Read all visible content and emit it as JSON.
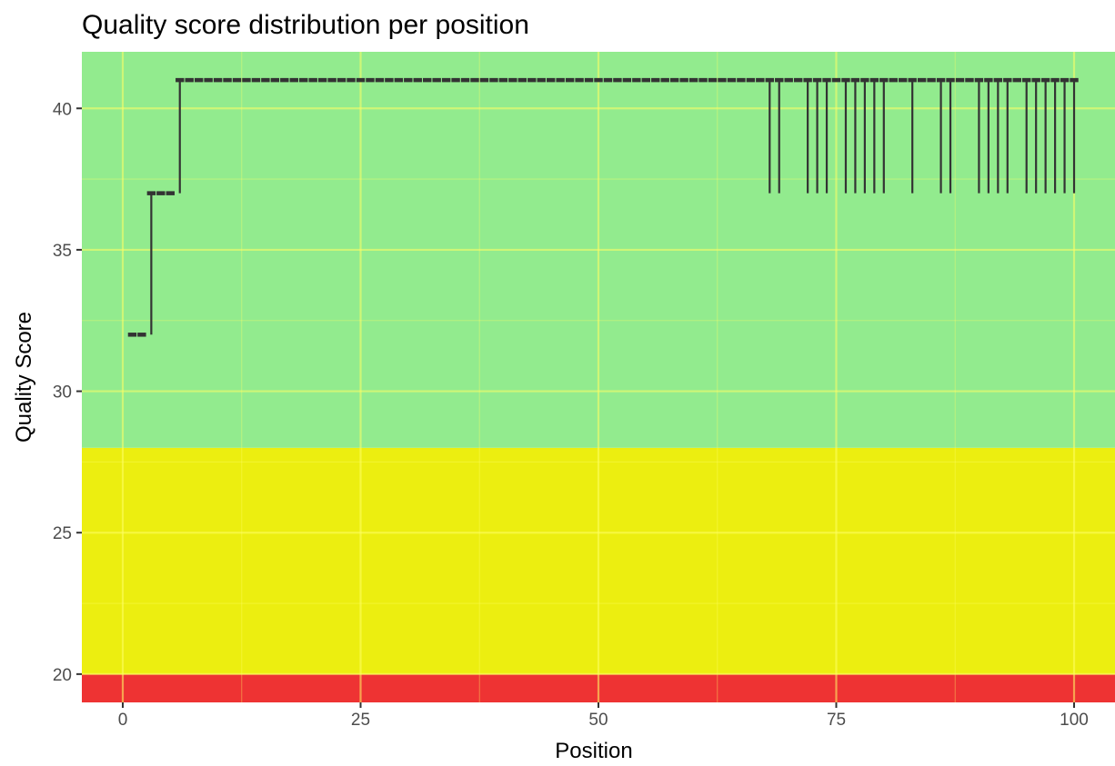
{
  "chart_data": {
    "type": "boxplot",
    "title": "Quality score distribution per position",
    "xlabel": "Position",
    "ylabel": "Quality Score",
    "xlim": [
      -4.3,
      104.3
    ],
    "ylim": [
      19,
      42
    ],
    "x_ticks": [
      0,
      25,
      50,
      75,
      100
    ],
    "y_ticks": [
      20,
      25,
      30,
      35,
      40
    ],
    "grid": true,
    "legend": "none",
    "bands": [
      {
        "from": 19,
        "to": 20,
        "color": "#ee3333"
      },
      {
        "from": 20,
        "to": 28,
        "color": "#ecee10"
      },
      {
        "from": 28,
        "to": 42,
        "color": "#92eb8e"
      }
    ],
    "box_color": "#333333",
    "constant_runs": [
      {
        "from": 1,
        "to": 2,
        "value": 32
      },
      {
        "from": 3,
        "to": 5,
        "value": 37
      },
      {
        "from": 6,
        "to": 100,
        "value": 41
      }
    ],
    "steps": [
      {
        "x": 3,
        "low": 32,
        "high": 37
      },
      {
        "x": 6,
        "low": 37,
        "high": 41
      }
    ],
    "whisker_positions": [
      68,
      69,
      72,
      73,
      74,
      76,
      77,
      78,
      79,
      80,
      83,
      86,
      87,
      90,
      91,
      92,
      93,
      95,
      96,
      97,
      98,
      99,
      100
    ],
    "whisker_low": 37,
    "whisker_high": 41
  }
}
